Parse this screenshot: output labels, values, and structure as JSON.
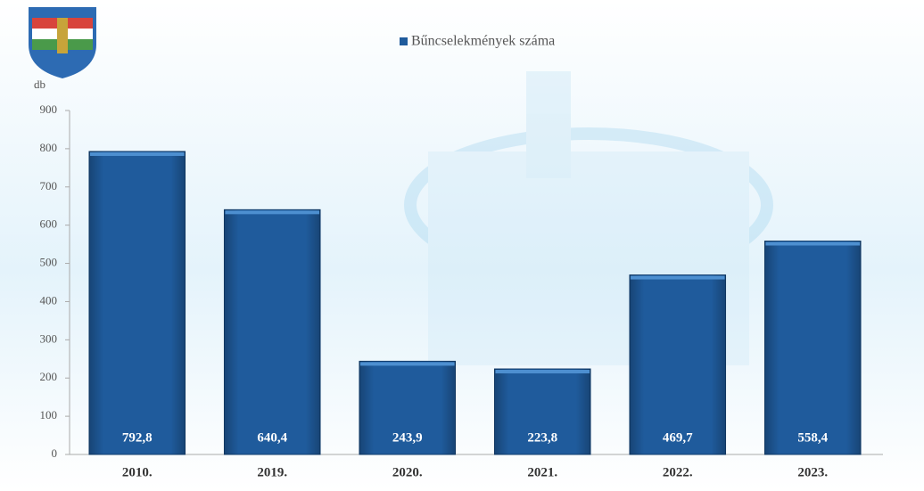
{
  "chart_data": {
    "type": "bar",
    "legend": "Bűncselekmények száma",
    "y_label": "db",
    "categories": [
      "2010.",
      "2019.",
      "2020.",
      "2021.",
      "2022.",
      "2023."
    ],
    "values": [
      792.8,
      640.4,
      243.9,
      223.8,
      469.7,
      558.4
    ],
    "value_labels": [
      "792,8",
      "640,4",
      "243,9",
      "223,8",
      "469,7",
      "558,4"
    ],
    "color": "#1f5b9c",
    "ylim": [
      0,
      900
    ],
    "yticks": [
      0,
      100,
      200,
      300,
      400,
      500,
      600,
      700,
      800,
      900
    ]
  }
}
